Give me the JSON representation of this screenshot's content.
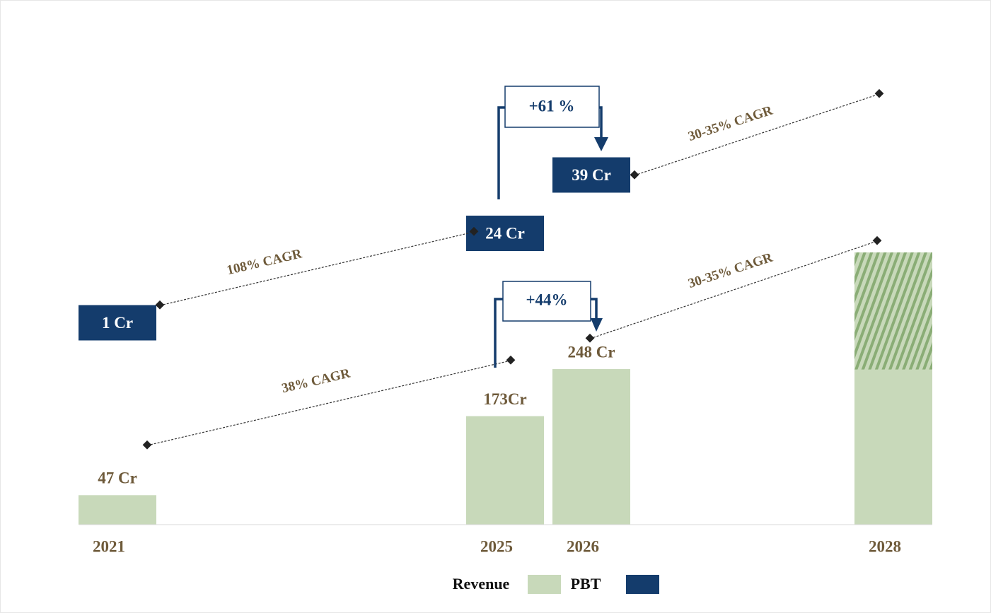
{
  "chart_data": {
    "type": "bar",
    "categories": [
      "2021",
      "2025",
      "2026",
      "2028"
    ],
    "series": [
      {
        "name": "Revenue",
        "color": "#c8d9ba",
        "values": [
          47,
          173,
          248,
          434
        ],
        "value_labels": [
          "47 Cr",
          "173Cr",
          "248 Cr",
          null
        ]
      },
      {
        "name": "PBT",
        "color": "#143c6c",
        "values": [
          1,
          24,
          39,
          null
        ],
        "value_labels": [
          "1 Cr",
          "24 Cr",
          "39 Cr",
          null
        ]
      }
    ],
    "annotations": [
      "+61 %",
      "+44%",
      "108% CAGR",
      "30-35% CAGR",
      "38% CAGR",
      "30-35% CAGR"
    ]
  }
}
